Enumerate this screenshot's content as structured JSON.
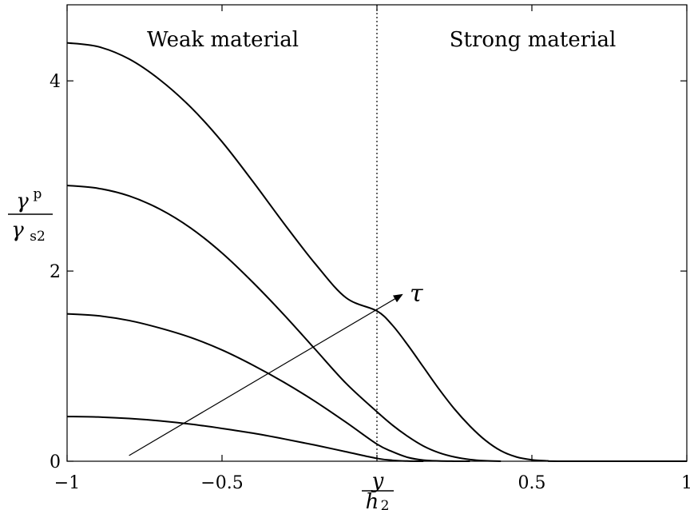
{
  "chart_data": {
    "type": "line",
    "xlabel": {
      "numerator": "y",
      "denominator_base": "h",
      "denominator_sub": "2"
    },
    "ylabel": {
      "numerator_base": "γ",
      "numerator_sup": "p",
      "denominator_base": "γ",
      "denominator_sub": "s2"
    },
    "xlim": [
      -1,
      1
    ],
    "ylim": [
      0,
      4.8
    ],
    "xticks": [
      -1,
      -0.5,
      0,
      0.5,
      1
    ],
    "xtick_labels": [
      "−1",
      "−0.5",
      "",
      "0.5",
      "1"
    ],
    "yticks": [
      0,
      2,
      4
    ],
    "ytick_labels": [
      "0",
      "2",
      "4"
    ],
    "grid": false,
    "interface_x": 0,
    "regions": [
      {
        "label": "Weak material"
      },
      {
        "label": "Strong material"
      }
    ],
    "annotation": {
      "label": "τ",
      "arrow_from": [
        -0.8,
        0.06
      ],
      "arrow_to": [
        0.08,
        1.75
      ]
    },
    "series": [
      {
        "x": [
          -1,
          -0.9,
          -0.8,
          -0.7,
          -0.6,
          -0.5,
          -0.4,
          -0.3,
          -0.2,
          -0.1,
          0,
          0.05,
          0.1,
          0.15
        ],
        "y": [
          0.47,
          0.465,
          0.45,
          0.425,
          0.39,
          0.345,
          0.295,
          0.235,
          0.17,
          0.1,
          0.03,
          0.01,
          0.002,
          0
        ]
      },
      {
        "x": [
          -1,
          -0.9,
          -0.8,
          -0.7,
          -0.6,
          -0.5,
          -0.4,
          -0.3,
          -0.2,
          -0.1,
          0,
          0.05,
          0.1,
          0.15,
          0.2,
          0.25,
          0.3
        ],
        "y": [
          1.55,
          1.53,
          1.48,
          1.4,
          1.3,
          1.17,
          1.01,
          0.83,
          0.63,
          0.41,
          0.18,
          0.1,
          0.04,
          0.012,
          0.003,
          0.0005,
          0
        ]
      },
      {
        "x": [
          -1,
          -0.9,
          -0.8,
          -0.7,
          -0.6,
          -0.5,
          -0.4,
          -0.3,
          -0.2,
          -0.1,
          0,
          0.05,
          0.1,
          0.15,
          0.2,
          0.25,
          0.3,
          0.35,
          0.4
        ],
        "y": [
          2.9,
          2.87,
          2.79,
          2.65,
          2.45,
          2.19,
          1.88,
          1.54,
          1.18,
          0.82,
          0.52,
          0.38,
          0.26,
          0.16,
          0.09,
          0.045,
          0.018,
          0.005,
          0
        ]
      },
      {
        "x": [
          -1,
          -0.9,
          -0.8,
          -0.7,
          -0.6,
          -0.5,
          -0.4,
          -0.3,
          -0.2,
          -0.1,
          0,
          0.05,
          0.1,
          0.15,
          0.2,
          0.25,
          0.3,
          0.35,
          0.4,
          0.45,
          0.5,
          0.55,
          0.6,
          1
        ],
        "y": [
          4.4,
          4.36,
          4.23,
          4.01,
          3.72,
          3.36,
          2.94,
          2.5,
          2.08,
          1.72,
          1.58,
          1.43,
          1.22,
          0.99,
          0.76,
          0.55,
          0.37,
          0.22,
          0.11,
          0.045,
          0.015,
          0.004,
          0,
          0
        ]
      }
    ]
  }
}
